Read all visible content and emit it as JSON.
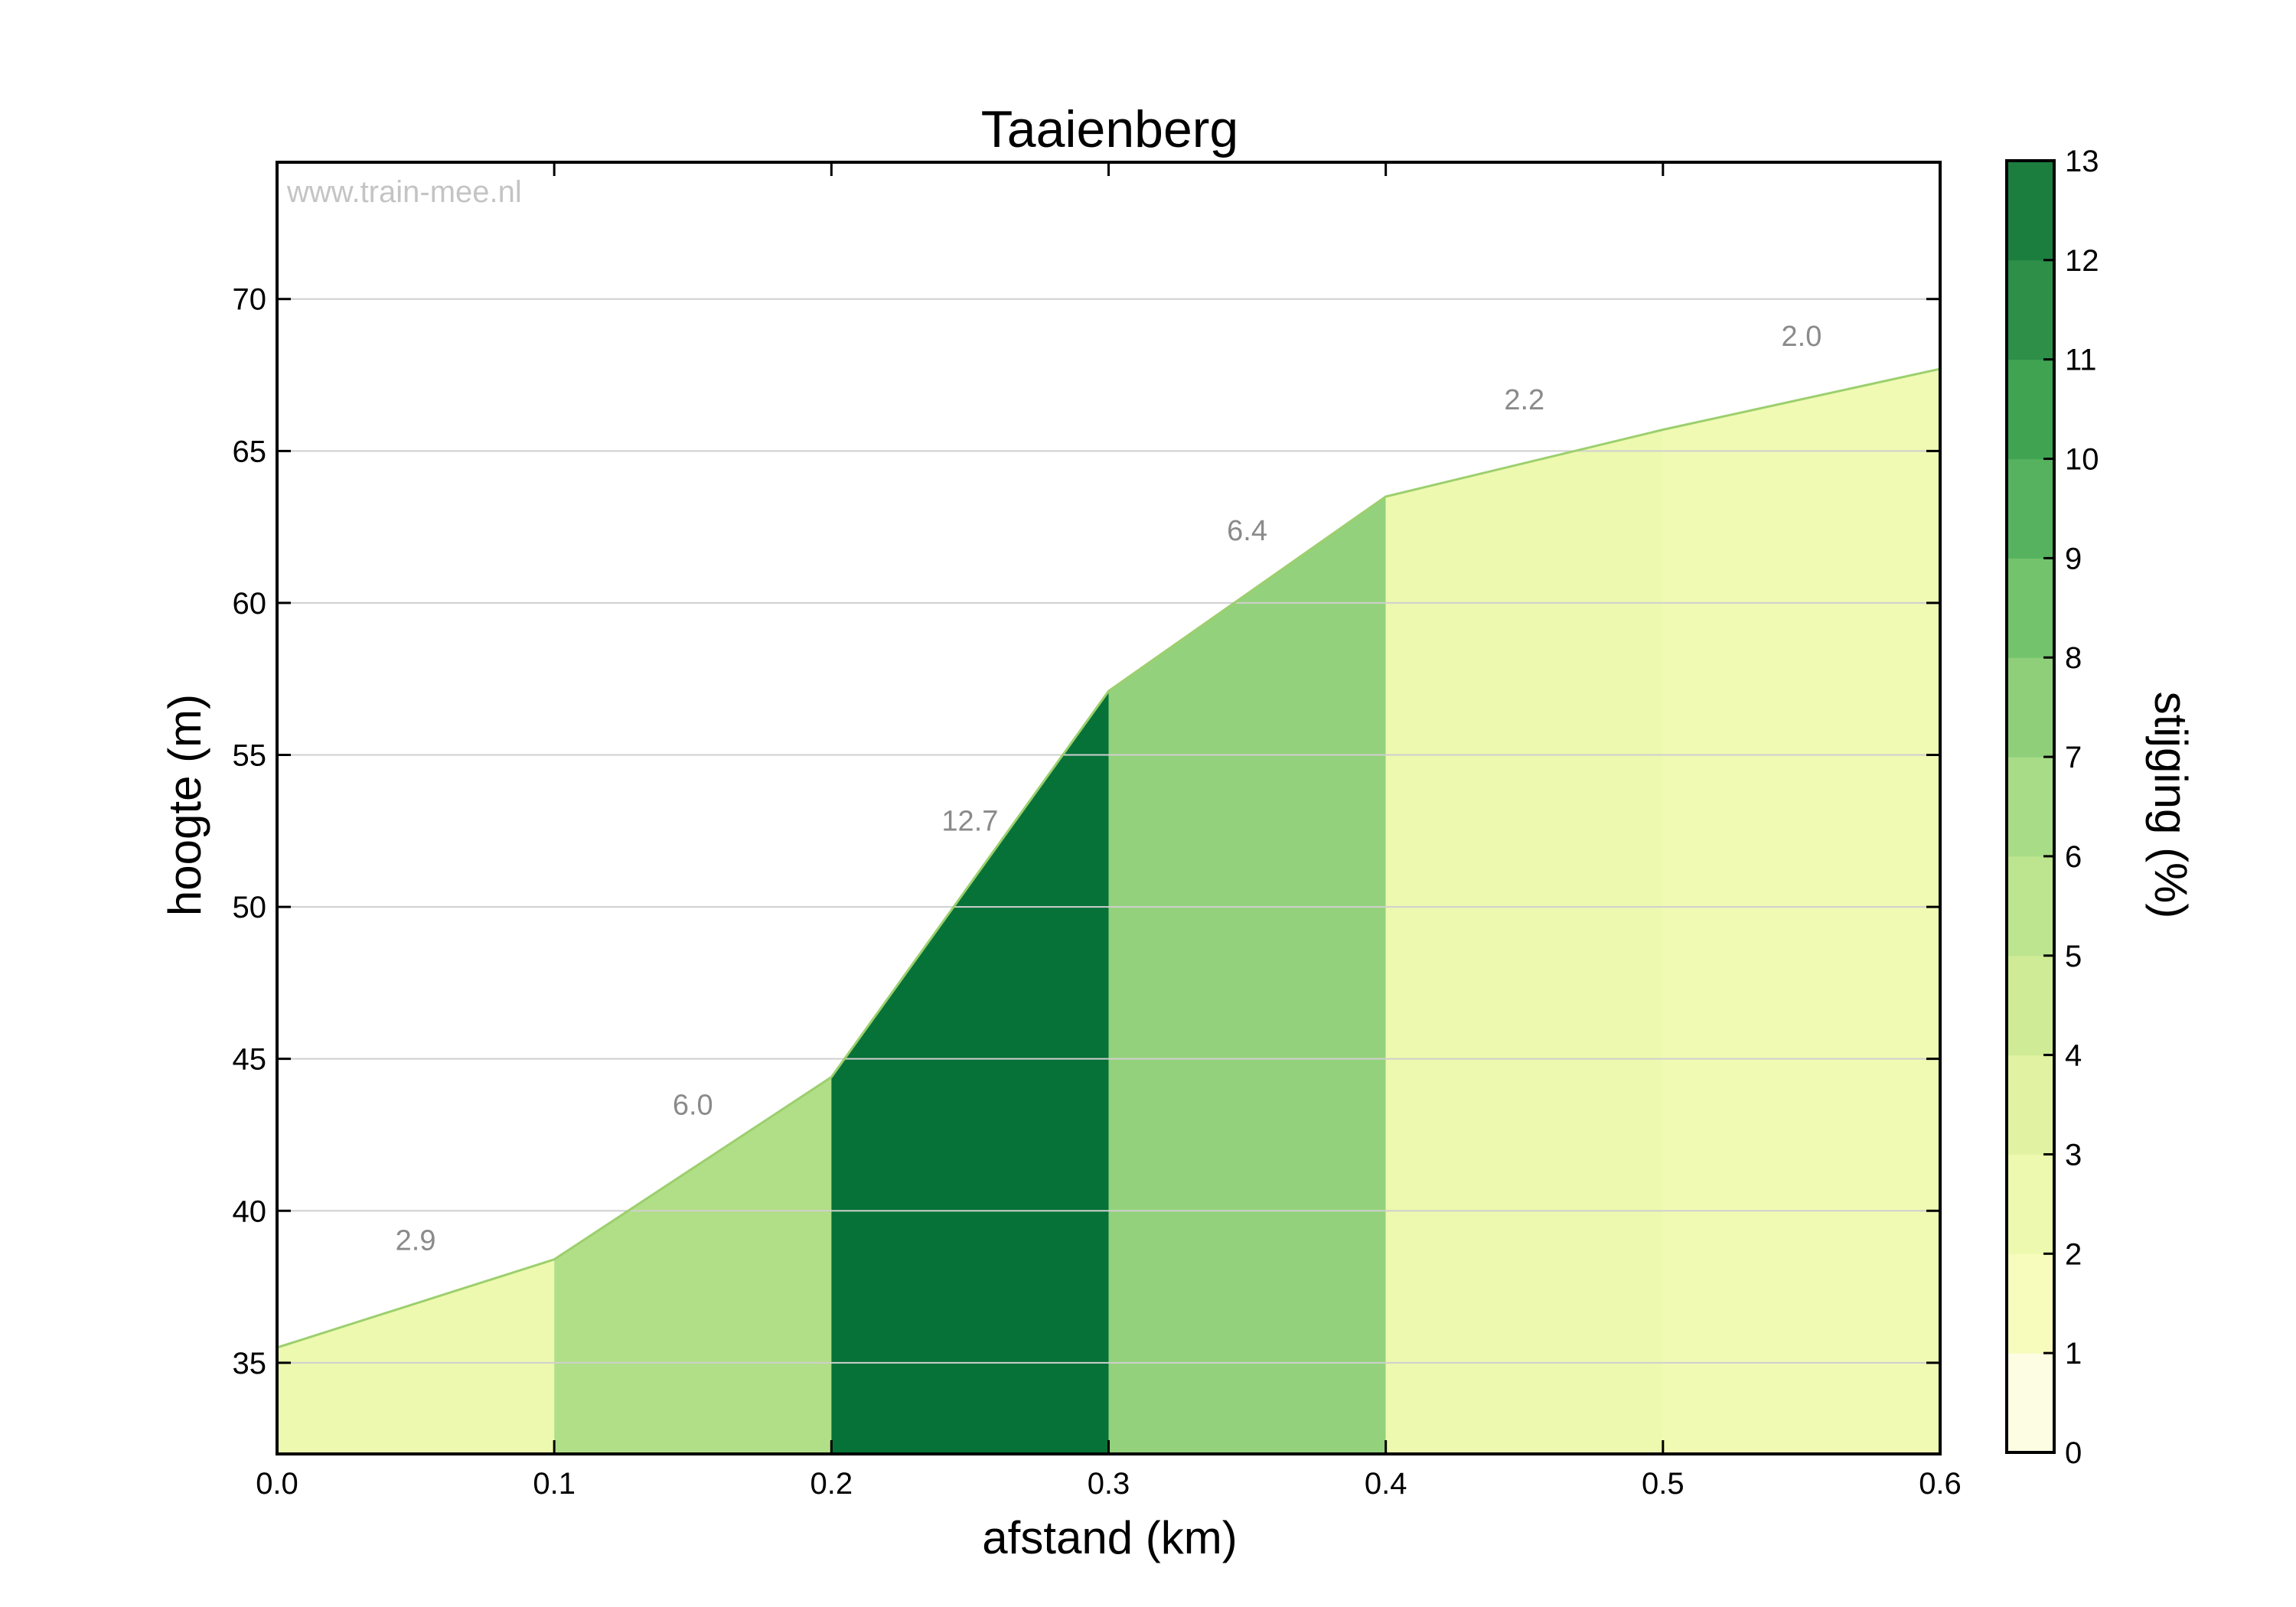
{
  "chart_data": {
    "type": "area",
    "title": "Taaienberg",
    "watermark": "www.train-mee.nl",
    "xlabel": "afstand (km)",
    "ylabel": "hoogte (m)",
    "xlim": [
      0,
      0.6
    ],
    "ylim": [
      32,
      74.5
    ],
    "xticks": [
      "0.0",
      "0.1",
      "0.2",
      "0.3",
      "0.4",
      "0.5",
      "0.6"
    ],
    "yticks": [
      35,
      40,
      45,
      50,
      55,
      60,
      65,
      70
    ],
    "grid": "horizontal",
    "elevation_profile": {
      "x": [
        0.0,
        0.1,
        0.2,
        0.3,
        0.4,
        0.5,
        0.6
      ],
      "y": [
        35.5,
        38.4,
        44.4,
        57.1,
        63.5,
        65.7,
        67.7
      ]
    },
    "segments": [
      {
        "x0": 0.0,
        "x1": 0.1,
        "grade": "2.9",
        "color": "#edf9ae"
      },
      {
        "x0": 0.1,
        "x1": 0.2,
        "grade": "6.0",
        "color": "#b1df87"
      },
      {
        "x0": 0.2,
        "x1": 0.3,
        "grade": "12.7",
        "color": "#067237"
      },
      {
        "x0": 0.3,
        "x1": 0.4,
        "grade": "6.4",
        "color": "#94d17c"
      },
      {
        "x0": 0.4,
        "x1": 0.5,
        "grade": "2.2",
        "color": "#edf9ae"
      },
      {
        "x0": 0.5,
        "x1": 0.6,
        "grade": "2.0",
        "color": "#f0fab3"
      }
    ],
    "colorbar": {
      "label": "stijging (%)",
      "min": 0,
      "max": 13,
      "ticks": [
        0,
        1,
        2,
        3,
        4,
        5,
        6,
        7,
        8,
        9,
        10,
        11,
        12,
        13
      ],
      "colors": [
        "#fdfde3",
        "#f7fcbc",
        "#edf9ae",
        "#e1f3a3",
        "#cfeb96",
        "#bde58f",
        "#a9dc87",
        "#8fcf7a",
        "#72c36c",
        "#56b25f",
        "#3fa352",
        "#2d8f48",
        "#1b7e3f"
      ]
    }
  }
}
